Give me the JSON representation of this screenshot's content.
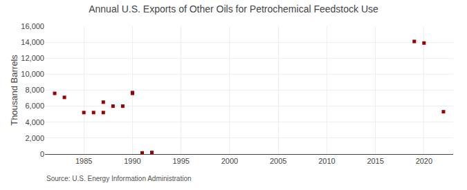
{
  "chart_data": {
    "type": "scatter",
    "title": "Annual U.S. Exports of Other Oils for Petrochemical Feedstock Use",
    "ylabel": "Thousand Barrels",
    "annotations": [
      "Source: U.S. Energy Information Administration"
    ],
    "x": [
      1982,
      1983,
      1985,
      1986,
      1987,
      1987,
      1988,
      1989,
      1990,
      1990,
      1991,
      1992,
      2019,
      2020,
      2022
    ],
    "values": [
      7600,
      7100,
      5200,
      5200,
      5200,
      6500,
      6000,
      6000,
      7600,
      7700,
      150,
      200,
      14100,
      13900,
      5300
    ],
    "color": "#990000",
    "marker": "square",
    "xlim": [
      1981,
      2023
    ],
    "xticks": [
      1985,
      1990,
      1995,
      2000,
      2005,
      2010,
      2015,
      2020
    ],
    "ylim": [
      0,
      16000
    ],
    "yticks": [
      0,
      {
        "value": 2000,
        "label": "2,000"
      },
      {
        "value": 4000,
        "label": "4,000"
      },
      {
        "value": 6000,
        "label": "6,000"
      },
      {
        "value": 8000,
        "label": "8,000"
      },
      {
        "value": 10000,
        "label": "10,000"
      },
      {
        "value": 12000,
        "label": "12,000"
      },
      {
        "value": 14000,
        "label": "14,000"
      },
      {
        "value": 16000,
        "label": "16,000"
      }
    ],
    "grid": true
  }
}
